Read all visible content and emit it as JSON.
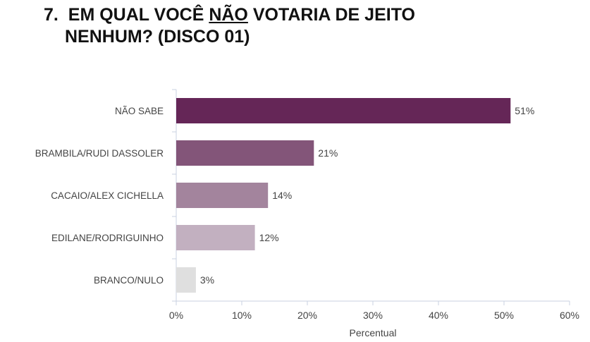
{
  "title": {
    "number": "7.",
    "pre": "EM QUAL VOCÊ ",
    "underlined": "NÃO",
    "post": " VOTARIA DE JEITO",
    "line2": "NENHUM? (DISCO 01)"
  },
  "chart_data": {
    "type": "bar",
    "orientation": "horizontal",
    "categories": [
      "NÃO SABE",
      "BRAMBILA/RUDI DASSOLER",
      "CACAIO/ALEX CICHELLA",
      "EDILANE/RODRIGUINHO",
      "BRANCO/NULO"
    ],
    "values": [
      51,
      21,
      14,
      12,
      3
    ],
    "value_labels": [
      "51%",
      "21%",
      "14%",
      "12%",
      "3%"
    ],
    "colors": [
      "#652657",
      "#835579",
      "#a3849d",
      "#c2b0c0",
      "#dfdfdf"
    ],
    "xlabel": "Percentual",
    "xlim": [
      0,
      60
    ],
    "xticks": [
      0,
      10,
      20,
      30,
      40,
      50,
      60
    ],
    "xtick_labels": [
      "0%",
      "10%",
      "20%",
      "30%",
      "40%",
      "50%",
      "60%"
    ],
    "grid": false
  }
}
